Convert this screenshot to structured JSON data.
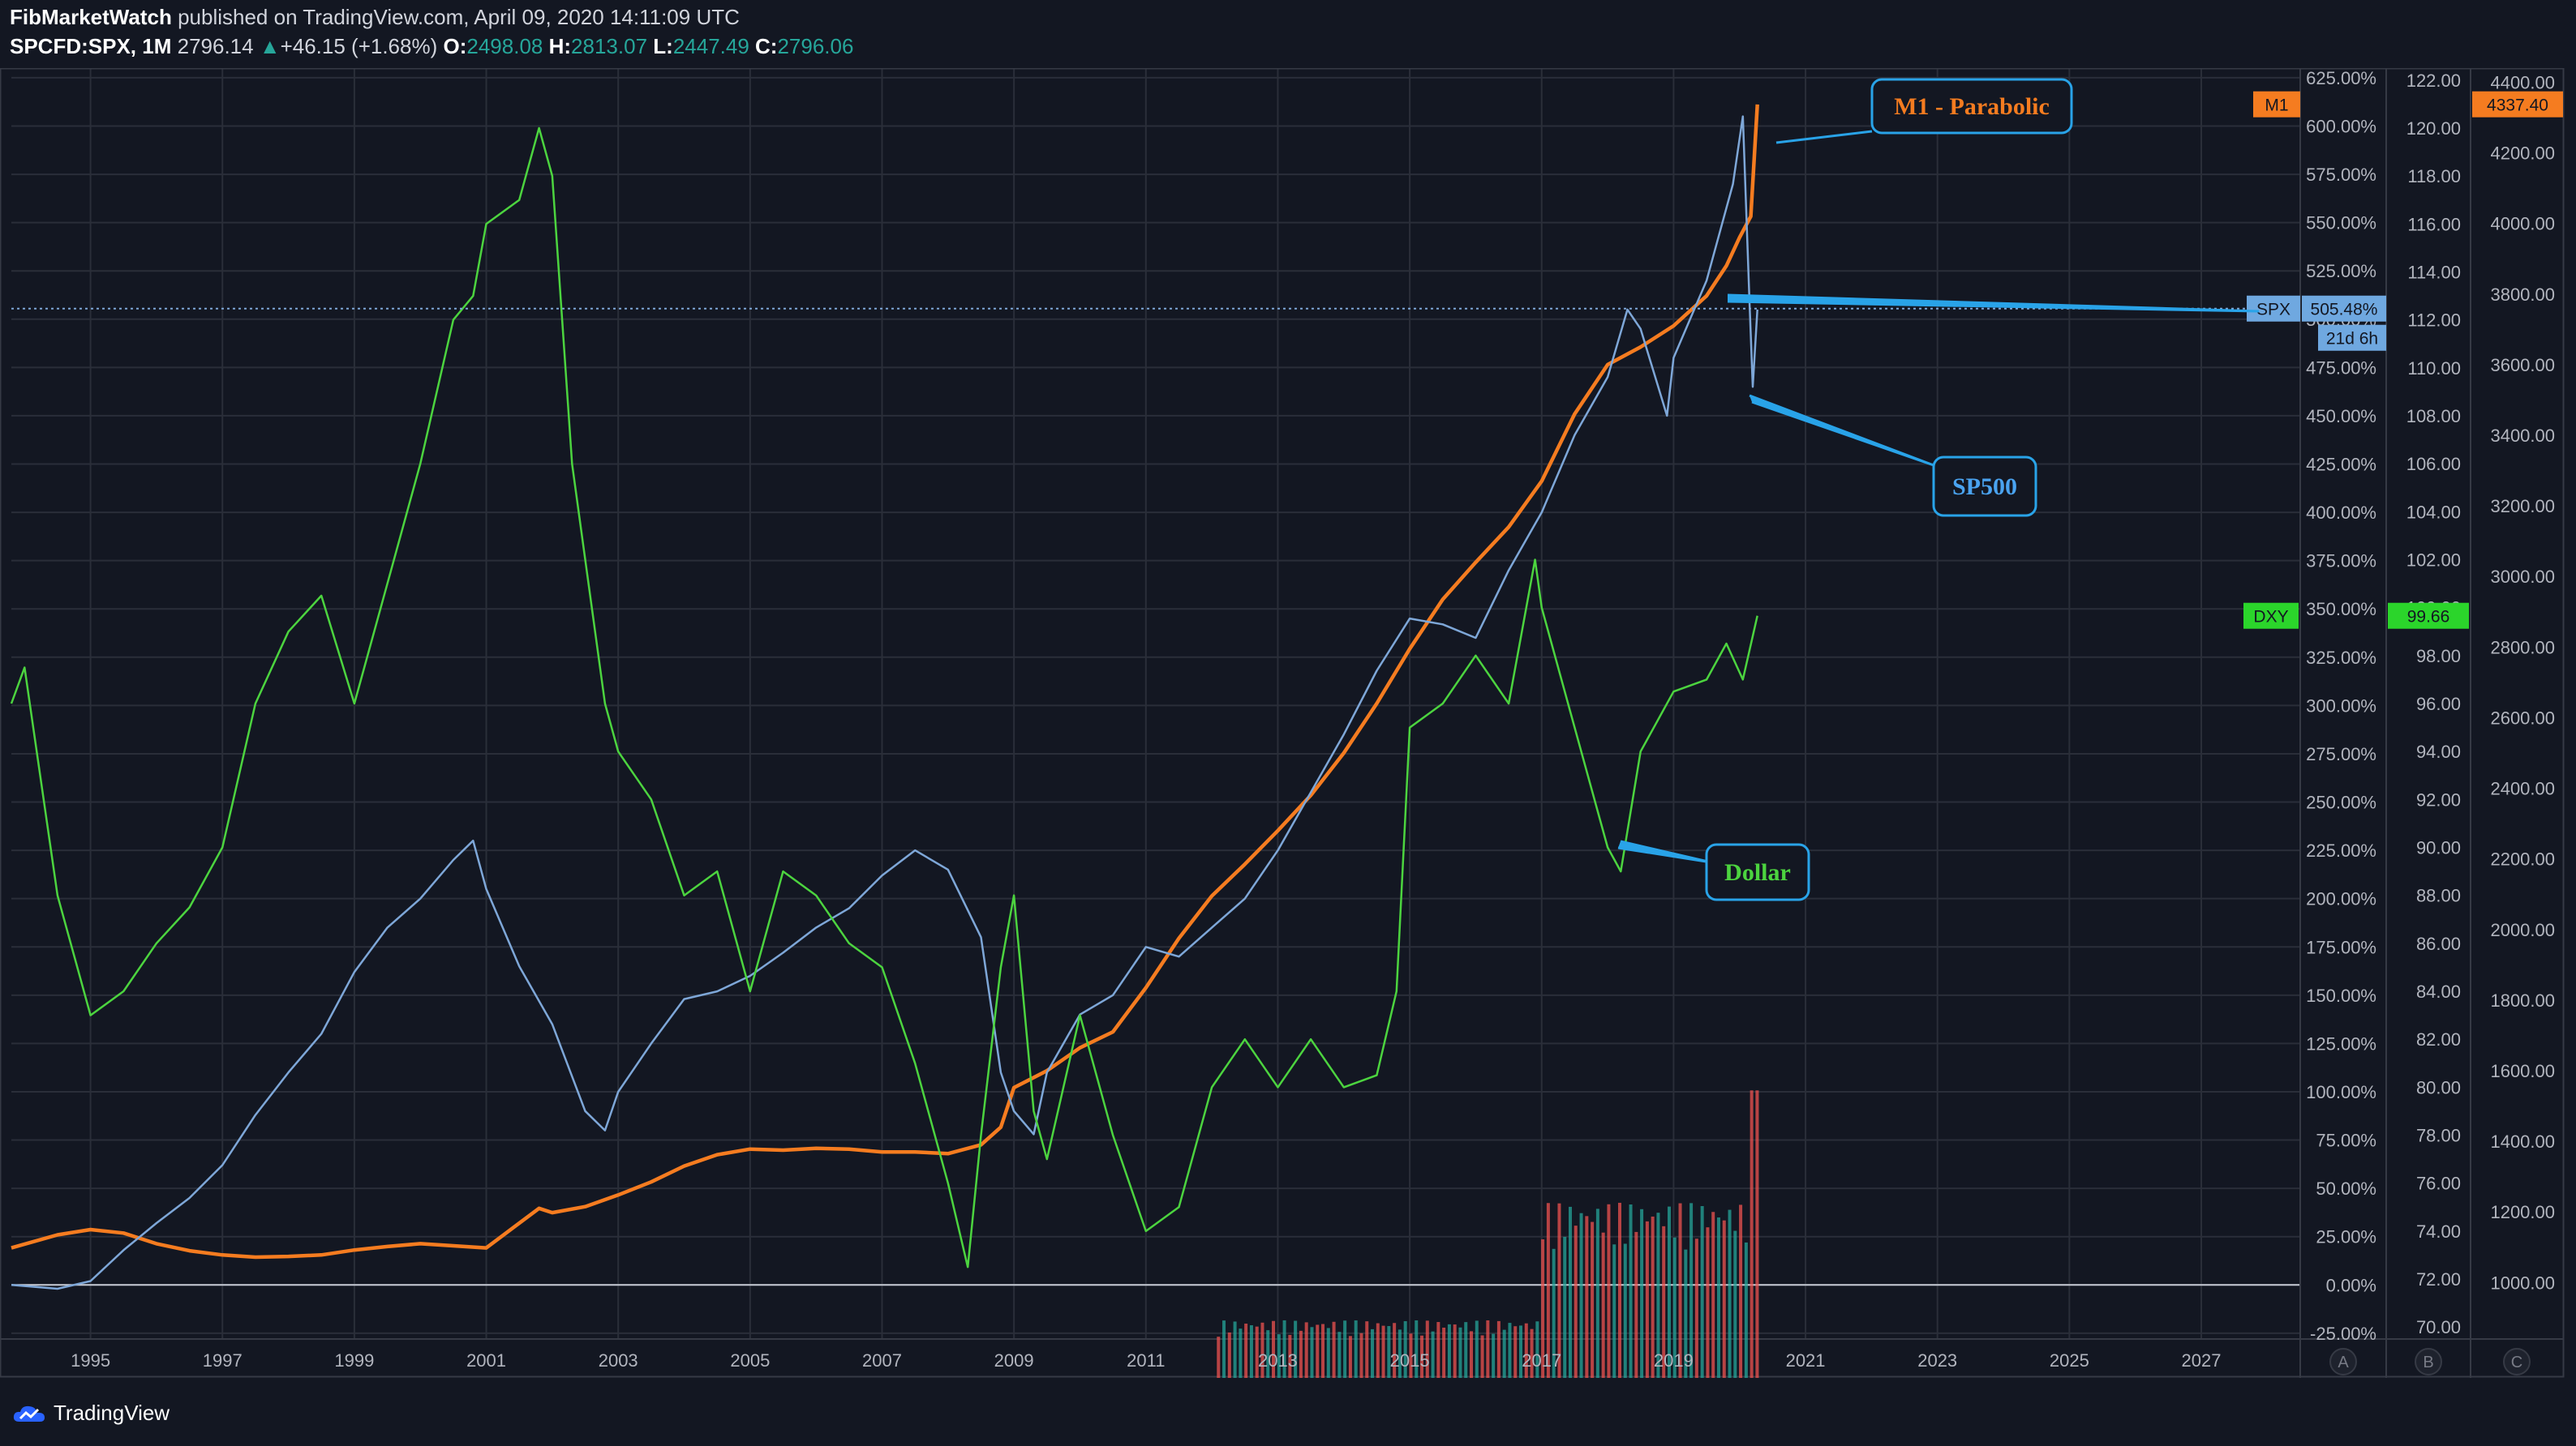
{
  "header": {
    "author": "FibMarketWatch",
    "published_text": "published on TradingView.com, April 09, 2020 14:11:09 UTC",
    "symbol": "SPCFD:SPX, 1M",
    "last_price": "2796.14",
    "change_arrow": "▲",
    "change": "+46.15 (+1.68%)",
    "o_label": "O:",
    "o_value": "2498.08",
    "h_label": "H:",
    "h_value": "2813.07",
    "l_label": "L:",
    "l_value": "2447.49",
    "c_label": "C:",
    "c_value": "2796.06"
  },
  "footer": {
    "brand": "TradingView"
  },
  "colors": {
    "background": "#131722",
    "grid": "#2a2e39",
    "m1": "#f57c20",
    "spx": "#7ea7d8",
    "dxy": "#4cd43f",
    "volume_up": "#26a69a",
    "volume_down": "#ef5350"
  },
  "chart_data": {
    "type": "line",
    "x_axis": {
      "range": [
        1993.8,
        2028.5
      ],
      "ticks": [
        "1995",
        "1997",
        "1999",
        "2001",
        "2003",
        "2005",
        "2007",
        "2009",
        "2011",
        "2013",
        "2015",
        "2017",
        "2019",
        "2021",
        "2023",
        "2025",
        "2027"
      ]
    },
    "axis_pct": {
      "range": [
        -28,
        630
      ],
      "ticks": [
        "625.00%",
        "600.00%",
        "575.00%",
        "550.00%",
        "525.00%",
        "500.00%",
        "475.00%",
        "450.00%",
        "425.00%",
        "400.00%",
        "375.00%",
        "350.00%",
        "325.00%",
        "300.00%",
        "275.00%",
        "250.00%",
        "225.00%",
        "200.00%",
        "175.00%",
        "150.00%",
        "125.00%",
        "100.00%",
        "75.00%",
        "50.00%",
        "25.00%",
        "0.00%",
        "-25.00%"
      ],
      "label": "A"
    },
    "axis_dxy": {
      "range": [
        69.5,
        122.5
      ],
      "ticks": [
        "122.00",
        "120.00",
        "118.00",
        "116.00",
        "114.00",
        "112.00",
        "110.00",
        "108.00",
        "106.00",
        "104.00",
        "102.00",
        "100.00",
        "98.00",
        "96.00",
        "94.00",
        "92.00",
        "90.00",
        "88.00",
        "86.00",
        "84.00",
        "82.00",
        "80.00",
        "78.00",
        "76.00",
        "74.00",
        "72.00",
        "70.00"
      ],
      "label": "B"
    },
    "axis_m1": {
      "range": [
        840,
        4440
      ],
      "ticks": [
        "4400.00",
        "4200.00",
        "4000.00",
        "3800.00",
        "3600.00",
        "3400.00",
        "3200.00",
        "3000.00",
        "2800.00",
        "2600.00",
        "2400.00",
        "2200.00",
        "2000.00",
        "1800.00",
        "1600.00",
        "1400.00",
        "1200.00",
        "1000.00"
      ],
      "label": "C"
    },
    "series": [
      {
        "name": "M1",
        "axis": "m1",
        "last_value": "4337.40",
        "points": [
          [
            1993.8,
            1098
          ],
          [
            1994.5,
            1135
          ],
          [
            1995,
            1150
          ],
          [
            1995.5,
            1140
          ],
          [
            1996,
            1110
          ],
          [
            1996.5,
            1090
          ],
          [
            1997,
            1078
          ],
          [
            1997.5,
            1072
          ],
          [
            1998,
            1074
          ],
          [
            1998.5,
            1078
          ],
          [
            1999,
            1092
          ],
          [
            1999.5,
            1102
          ],
          [
            2000,
            1110
          ],
          [
            2000.5,
            1104
          ],
          [
            2001,
            1098
          ],
          [
            2001.5,
            1168
          ],
          [
            2001.8,
            1210
          ],
          [
            2002,
            1198
          ],
          [
            2002.5,
            1215
          ],
          [
            2003,
            1248
          ],
          [
            2003.5,
            1285
          ],
          [
            2004,
            1330
          ],
          [
            2004.5,
            1362
          ],
          [
            2005,
            1378
          ],
          [
            2005.5,
            1375
          ],
          [
            2006,
            1380
          ],
          [
            2006.5,
            1378
          ],
          [
            2007,
            1370
          ],
          [
            2007.5,
            1370
          ],
          [
            2008,
            1365
          ],
          [
            2008.5,
            1390
          ],
          [
            2008.8,
            1440
          ],
          [
            2009,
            1552
          ],
          [
            2009.5,
            1600
          ],
          [
            2010,
            1665
          ],
          [
            2010.5,
            1710
          ],
          [
            2011,
            1835
          ],
          [
            2011.5,
            1975
          ],
          [
            2012,
            2095
          ],
          [
            2012.5,
            2185
          ],
          [
            2013,
            2280
          ],
          [
            2013.5,
            2380
          ],
          [
            2014,
            2500
          ],
          [
            2014.5,
            2640
          ],
          [
            2015,
            2795
          ],
          [
            2015.5,
            2935
          ],
          [
            2016,
            3040
          ],
          [
            2016.5,
            3140
          ],
          [
            2017,
            3270
          ],
          [
            2017.5,
            3460
          ],
          [
            2018,
            3600
          ],
          [
            2018.5,
            3650
          ],
          [
            2019,
            3710
          ],
          [
            2019.5,
            3795
          ],
          [
            2019.8,
            3880
          ],
          [
            2020,
            3960
          ],
          [
            2020.17,
            4020
          ],
          [
            2020.27,
            4337
          ]
        ]
      },
      {
        "name": "SPX",
        "axis": "pct",
        "last_value": "505.48%",
        "countdown": "21d 6h",
        "points": [
          [
            1993.8,
            0
          ],
          [
            1994.5,
            -2
          ],
          [
            1995,
            2
          ],
          [
            1995.5,
            18
          ],
          [
            1996,
            32
          ],
          [
            1996.5,
            45
          ],
          [
            1997,
            62
          ],
          [
            1997.5,
            88
          ],
          [
            1998,
            110
          ],
          [
            1998.5,
            130
          ],
          [
            1999,
            162
          ],
          [
            1999.5,
            185
          ],
          [
            2000,
            200
          ],
          [
            2000.5,
            220
          ],
          [
            2000.8,
            230
          ],
          [
            2001,
            205
          ],
          [
            2001.5,
            165
          ],
          [
            2002,
            135
          ],
          [
            2002.5,
            90
          ],
          [
            2002.8,
            80
          ],
          [
            2003,
            100
          ],
          [
            2003.5,
            125
          ],
          [
            2004,
            148
          ],
          [
            2004.5,
            152
          ],
          [
            2005,
            160
          ],
          [
            2005.5,
            172
          ],
          [
            2006,
            185
          ],
          [
            2006.5,
            195
          ],
          [
            2007,
            212
          ],
          [
            2007.5,
            225
          ],
          [
            2008,
            215
          ],
          [
            2008.5,
            180
          ],
          [
            2008.8,
            110
          ],
          [
            2009,
            90
          ],
          [
            2009.3,
            78
          ],
          [
            2009.5,
            110
          ],
          [
            2010,
            140
          ],
          [
            2010.5,
            150
          ],
          [
            2011,
            175
          ],
          [
            2011.5,
            170
          ],
          [
            2012,
            185
          ],
          [
            2012.5,
            200
          ],
          [
            2013,
            225
          ],
          [
            2013.5,
            255
          ],
          [
            2014,
            285
          ],
          [
            2014.5,
            318
          ],
          [
            2015,
            345
          ],
          [
            2015.5,
            342
          ],
          [
            2016,
            335
          ],
          [
            2016.5,
            370
          ],
          [
            2017,
            400
          ],
          [
            2017.5,
            440
          ],
          [
            2018,
            470
          ],
          [
            2018.3,
            505
          ],
          [
            2018.5,
            495
          ],
          [
            2018.9,
            450
          ],
          [
            2019,
            480
          ],
          [
            2019.5,
            520
          ],
          [
            2019.9,
            570
          ],
          [
            2020.05,
            605
          ],
          [
            2020.15,
            510
          ],
          [
            2020.2,
            465
          ],
          [
            2020.27,
            505
          ]
        ]
      },
      {
        "name": "DXY",
        "axis": "dxy",
        "last_value": "99.66",
        "points": [
          [
            1993.8,
            96
          ],
          [
            1994,
            97.5
          ],
          [
            1994.5,
            88
          ],
          [
            1995,
            83
          ],
          [
            1995.5,
            84
          ],
          [
            1996,
            86
          ],
          [
            1996.5,
            87.5
          ],
          [
            1997,
            90
          ],
          [
            1997.5,
            96
          ],
          [
            1998,
            99
          ],
          [
            1998.5,
            100.5
          ],
          [
            1999,
            96
          ],
          [
            1999.5,
            101
          ],
          [
            2000,
            106
          ],
          [
            2000.5,
            112
          ],
          [
            2000.8,
            113
          ],
          [
            2001,
            116
          ],
          [
            2001.5,
            117
          ],
          [
            2001.8,
            120
          ],
          [
            2002,
            118
          ],
          [
            2002.3,
            106
          ],
          [
            2002.8,
            96
          ],
          [
            2003,
            94
          ],
          [
            2003.5,
            92
          ],
          [
            2004,
            88
          ],
          [
            2004.5,
            89
          ],
          [
            2005,
            84
          ],
          [
            2005.5,
            89
          ],
          [
            2006,
            88
          ],
          [
            2006.5,
            86
          ],
          [
            2007,
            85
          ],
          [
            2007.5,
            81
          ],
          [
            2008,
            76
          ],
          [
            2008.3,
            72.5
          ],
          [
            2008.5,
            78
          ],
          [
            2008.8,
            85
          ],
          [
            2009,
            88
          ],
          [
            2009.3,
            79
          ],
          [
            2009.5,
            77
          ],
          [
            2010,
            83
          ],
          [
            2010.3,
            80
          ],
          [
            2010.5,
            78
          ],
          [
            2011,
            74
          ],
          [
            2011.5,
            75
          ],
          [
            2012,
            80
          ],
          [
            2012.5,
            82
          ],
          [
            2013,
            80
          ],
          [
            2013.5,
            82
          ],
          [
            2014,
            80
          ],
          [
            2014.5,
            80.5
          ],
          [
            2014.8,
            84
          ],
          [
            2015,
            95
          ],
          [
            2015.5,
            96
          ],
          [
            2016,
            98
          ],
          [
            2016.5,
            96
          ],
          [
            2016.9,
            102
          ],
          [
            2017,
            100
          ],
          [
            2017.5,
            95
          ],
          [
            2018,
            90
          ],
          [
            2018.2,
            89
          ],
          [
            2018.5,
            94
          ],
          [
            2019,
            96.5
          ],
          [
            2019.5,
            97
          ],
          [
            2019.8,
            98.5
          ],
          [
            2020.05,
            97
          ],
          [
            2020.27,
            99.66
          ]
        ]
      }
    ],
    "volume": {
      "range_start": 2012.1,
      "range_end": 2020.27,
      "pre_2017_level": 0.2,
      "post_2017_level": 0.58,
      "spike_value": 1.0
    },
    "annotations": [
      {
        "label": "M1 - Parabolic",
        "color": "#f57c20",
        "border": "#29a3e8"
      },
      {
        "label": "SP500",
        "color": "#4aa3f0",
        "border": "#29a3e8"
      },
      {
        "label": "Dollar",
        "color": "#4cd43f",
        "border": "#29a3e8"
      }
    ],
    "scale_labels": {
      "m1": "M1",
      "spx": "SPX",
      "dxy": "DXY"
    },
    "grid": true
  }
}
